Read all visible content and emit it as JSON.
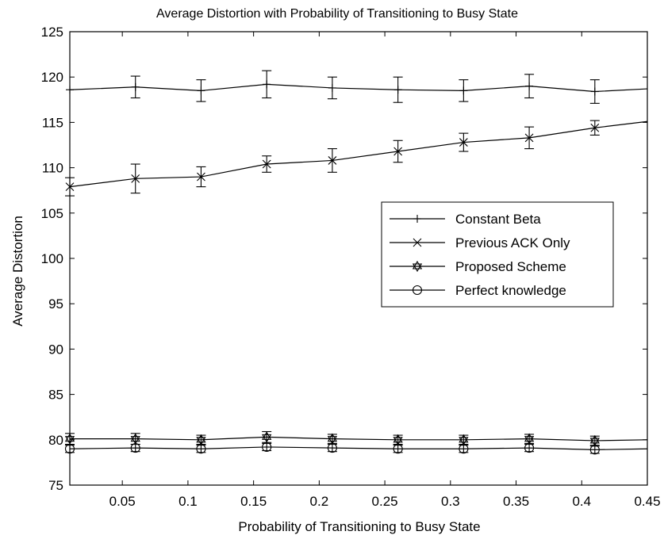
{
  "chart_data": {
    "type": "line",
    "title": "Average Distortion with Probability of Transitioning to Busy State",
    "xlabel": "Probability of Transitioning to Busy State",
    "ylabel": "Average Distortion",
    "xlim": [
      0.01,
      0.45
    ],
    "ylim": [
      75,
      125
    ],
    "xticks": [
      0.05,
      0.1,
      0.15,
      0.2,
      0.25,
      0.3,
      0.35,
      0.4,
      0.45
    ],
    "xtick_labels": [
      "0.05",
      "0.1",
      "0.15",
      "0.2",
      "0.25",
      "0.3",
      "0.35",
      "0.4",
      "0.45"
    ],
    "yticks": [
      75,
      80,
      85,
      90,
      95,
      100,
      105,
      110,
      115,
      120,
      125
    ],
    "ytick_labels": [
      "75",
      "80",
      "85",
      "90",
      "95",
      "100",
      "105",
      "110",
      "115",
      "120",
      "125"
    ],
    "grid": false,
    "legend_position": "right",
    "series": [
      {
        "name": "Constant Beta",
        "marker": "plus",
        "color": "#000000",
        "x": [
          0.01,
          0.06,
          0.11,
          0.16,
          0.21,
          0.26,
          0.31,
          0.36,
          0.41,
          0.45
        ],
        "y": [
          118.6,
          118.9,
          118.5,
          119.2,
          118.8,
          118.6,
          118.5,
          119.0,
          118.4,
          118.7
        ],
        "err": [
          0,
          1.2,
          1.2,
          1.5,
          1.2,
          1.4,
          1.2,
          1.3,
          1.3,
          0
        ]
      },
      {
        "name": "Previous ACK Only",
        "marker": "x",
        "color": "#000000",
        "x": [
          0.01,
          0.06,
          0.11,
          0.16,
          0.21,
          0.26,
          0.31,
          0.36,
          0.41,
          0.45
        ],
        "y": [
          107.9,
          108.8,
          109.0,
          110.4,
          110.8,
          111.8,
          112.8,
          113.3,
          114.4,
          115.1
        ],
        "err": [
          1.0,
          1.6,
          1.1,
          0.9,
          1.3,
          1.2,
          1.0,
          1.2,
          0.8,
          0
        ]
      },
      {
        "name": "Proposed Scheme",
        "marker": "star",
        "color": "#000000",
        "x": [
          0.01,
          0.06,
          0.11,
          0.16,
          0.21,
          0.26,
          0.31,
          0.36,
          0.41,
          0.45
        ],
        "y": [
          80.1,
          80.1,
          80.0,
          80.3,
          80.1,
          80.0,
          80.0,
          80.1,
          79.9,
          80.0
        ],
        "err": [
          0.6,
          0.6,
          0.5,
          0.6,
          0.5,
          0.5,
          0.5,
          0.5,
          0.5,
          0
        ]
      },
      {
        "name": "Perfect knowledge",
        "marker": "circle",
        "color": "#000000",
        "x": [
          0.01,
          0.06,
          0.11,
          0.16,
          0.21,
          0.26,
          0.31,
          0.36,
          0.41,
          0.45
        ],
        "y": [
          79.0,
          79.1,
          79.0,
          79.2,
          79.1,
          79.0,
          79.0,
          79.1,
          78.9,
          79.0
        ],
        "err": [
          0.4,
          0.4,
          0.4,
          0.4,
          0.4,
          0.4,
          0.4,
          0.4,
          0.4,
          0
        ]
      }
    ]
  }
}
